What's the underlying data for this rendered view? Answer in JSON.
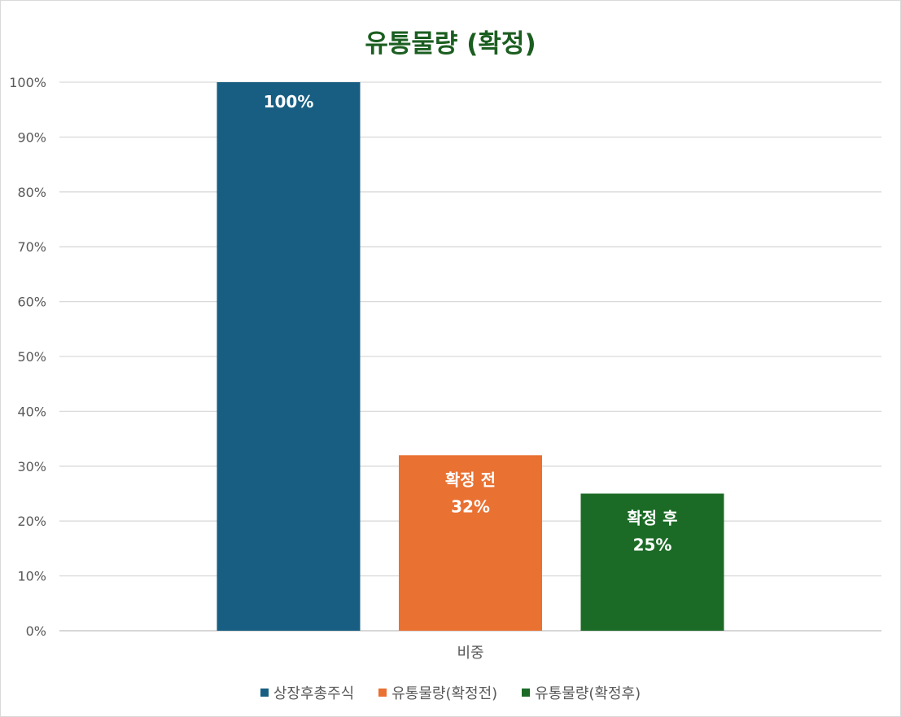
{
  "chart_data": {
    "type": "bar",
    "title": "유통물량 (확정)",
    "categories": [
      "비중"
    ],
    "series": [
      {
        "name": "상장후총주식",
        "values": [
          100
        ],
        "color": "#175e82",
        "data_label": [
          "100%"
        ]
      },
      {
        "name": "유통물량(확정전)",
        "values": [
          32
        ],
        "color": "#e97132",
        "data_label": [
          "확정 전",
          "32%"
        ]
      },
      {
        "name": "유통물량(확정후)",
        "values": [
          25
        ],
        "color": "#1b6b26",
        "data_label": [
          "확정 후",
          "25%"
        ]
      }
    ],
    "ylim": [
      0,
      100
    ],
    "y_ticks": [
      "0%",
      "10%",
      "20%",
      "30%",
      "40%",
      "50%",
      "60%",
      "70%",
      "80%",
      "90%",
      "100%"
    ],
    "grid": true,
    "legend_position": "bottom"
  }
}
